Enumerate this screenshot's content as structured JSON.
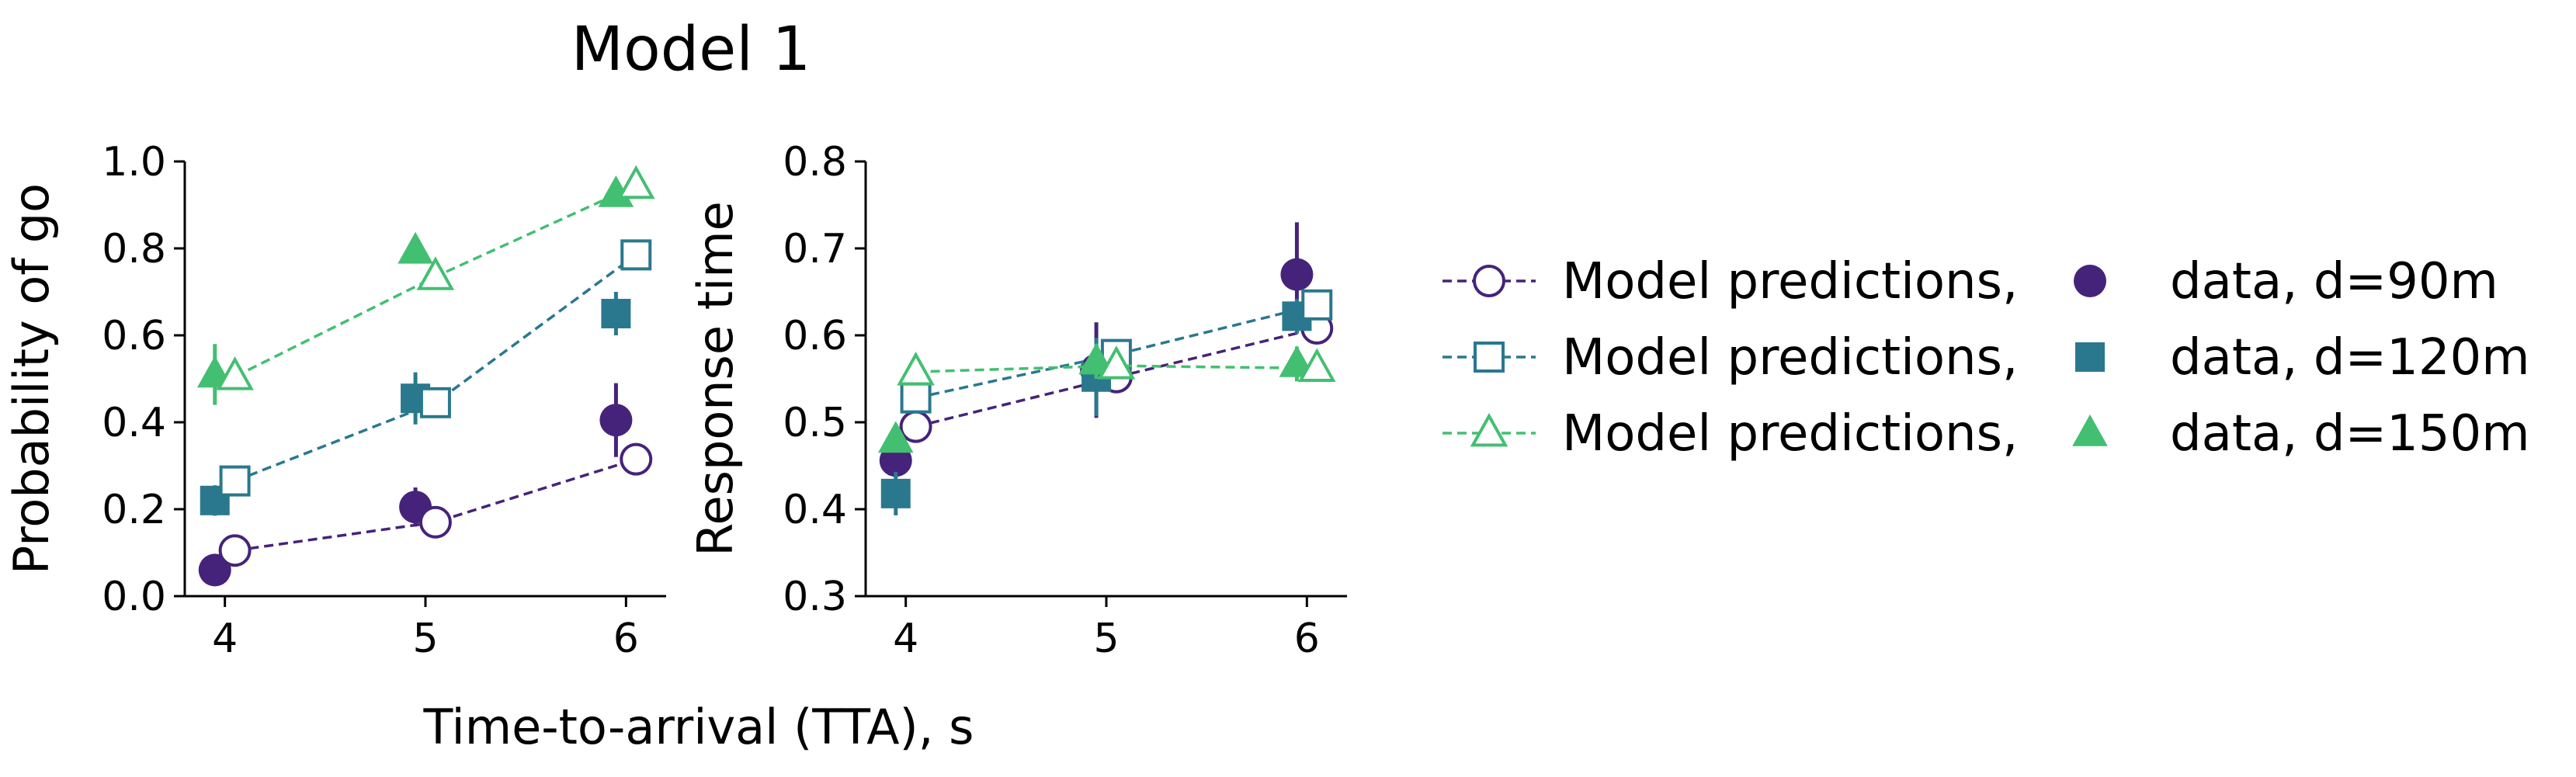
{
  "title": "Model 1",
  "xlabel": "Time-to-arrival (TTA), s",
  "colors": {
    "d90": "#46237a",
    "d120": "#2a788e",
    "d150": "#43bf71"
  },
  "legend": [
    {
      "series": "d90",
      "model_label": "Model predictions,",
      "data_label": "data, d=90m"
    },
    {
      "series": "d120",
      "model_label": "Model predictions,",
      "data_label": "data, d=120m"
    },
    {
      "series": "d150",
      "model_label": "Model predictions,",
      "data_label": "data, d=150m"
    }
  ],
  "chart_data": [
    {
      "type": "line",
      "ylabel": "Probability of go",
      "x_ticks": [
        4,
        5,
        6
      ],
      "y_ticks": [
        "0.0",
        "0.2",
        "0.4",
        "0.6",
        "0.8",
        "1.0"
      ],
      "xlim": [
        3.8,
        6.2
      ],
      "ylim": [
        0.0,
        1.0
      ],
      "series": [
        {
          "key": "d90",
          "marker": "circle",
          "model": [
            0.105,
            0.17,
            0.315
          ],
          "data": [
            0.06,
            0.205,
            0.405
          ],
          "err": [
            0.015,
            0.045,
            0.085
          ]
        },
        {
          "key": "d120",
          "marker": "square",
          "model": [
            0.265,
            0.445,
            0.785
          ],
          "data": [
            0.22,
            0.455,
            0.65
          ],
          "err": [
            0.035,
            0.06,
            0.05
          ]
        },
        {
          "key": "d150",
          "marker": "triangle",
          "model": [
            0.505,
            0.735,
            0.945
          ],
          "data": [
            0.51,
            0.795,
            0.925
          ],
          "err": [
            0.07,
            0.02,
            0.015
          ]
        }
      ]
    },
    {
      "type": "line",
      "ylabel": "Response time",
      "x_ticks": [
        4,
        5,
        6
      ],
      "y_ticks": [
        "0.3",
        "0.4",
        "0.5",
        "0.6",
        "0.7",
        "0.8"
      ],
      "xlim": [
        3.8,
        6.2
      ],
      "ylim": [
        0.3,
        0.8
      ],
      "series": [
        {
          "key": "d90",
          "marker": "circle",
          "model": [
            0.495,
            0.552,
            0.608
          ],
          "data": [
            0.456,
            0.56,
            0.67
          ],
          "err": [
            0.01,
            0.055,
            0.06
          ]
        },
        {
          "key": "d120",
          "marker": "square",
          "model": [
            0.528,
            0.578,
            0.635
          ],
          "data": [
            0.418,
            0.552,
            0.622
          ],
          "err": [
            0.025,
            0.045,
            0.02
          ]
        },
        {
          "key": "d150",
          "marker": "triangle",
          "model": [
            0.558,
            0.565,
            0.562
          ],
          "data": [
            0.48,
            0.57,
            0.567
          ],
          "err": [
            0.01,
            0.02,
            0.02
          ]
        }
      ]
    }
  ]
}
